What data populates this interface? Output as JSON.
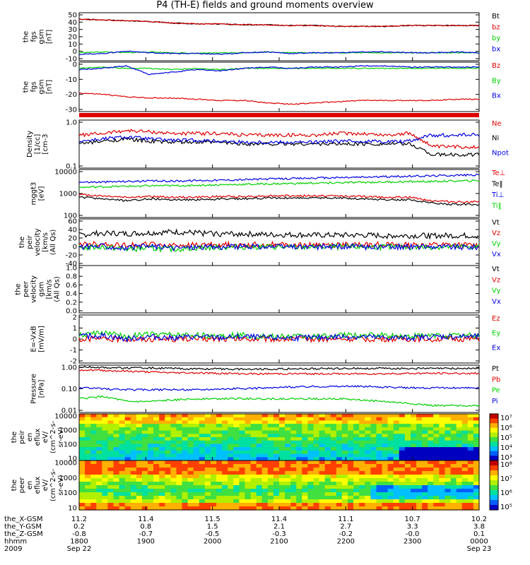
{
  "title": "P4 (TH-E) fields and ground moments overview",
  "colors": {
    "black": "#000000",
    "red": "#e00000",
    "green": "#00d000",
    "blue": "#0000e0"
  },
  "chart_data": [
    {
      "type": "line",
      "ylabel": [
        "the",
        "fgs",
        "gsm",
        "[nT]"
      ],
      "yticks": [
        "50",
        "40",
        "30",
        "20",
        "10",
        "0",
        "-10"
      ],
      "ylim": [
        -10,
        50
      ],
      "series": [
        {
          "name": "Bt",
          "color": "black",
          "values": [
            42,
            41,
            40,
            39,
            37,
            36,
            36,
            35,
            35,
            34,
            34,
            33,
            33,
            33,
            34,
            34,
            34,
            34
          ]
        },
        {
          "name": "bz",
          "color": "red",
          "values": [
            42,
            41,
            40,
            39,
            37,
            36,
            36,
            35,
            35,
            34,
            34,
            33,
            33,
            33,
            34,
            34,
            34,
            34
          ]
        },
        {
          "name": "by",
          "color": "green",
          "values": [
            0,
            1,
            0,
            1,
            0,
            -1,
            0,
            0,
            1,
            0,
            0,
            0,
            0,
            0,
            0,
            0,
            0,
            0
          ]
        },
        {
          "name": "bx",
          "color": "blue",
          "values": [
            -2,
            -1,
            2,
            0,
            -1,
            -1,
            -2,
            0,
            1,
            -1,
            0,
            0,
            1,
            1,
            0,
            0,
            1,
            0
          ]
        }
      ]
    },
    {
      "type": "line",
      "ylabel": [
        "the",
        "fgs",
        "gsm",
        "[nT]"
      ],
      "yticks": [
        "0",
        "-10",
        "-20",
        "-30"
      ],
      "ylim": [
        -35,
        5
      ],
      "series": [
        {
          "name": "Bz",
          "color": "red",
          "values": [
            -20,
            -21,
            -23,
            -24,
            -24,
            -25,
            -26,
            -26,
            -28,
            -29,
            -28,
            -27,
            -26,
            -26,
            -26,
            -26,
            -25,
            -25
          ]
        },
        {
          "name": "By",
          "color": "green",
          "values": [
            0,
            1,
            0,
            0,
            -1,
            0,
            -1,
            0,
            0,
            0,
            0,
            0,
            0,
            0,
            0,
            0,
            0,
            0
          ]
        },
        {
          "name": "Bx",
          "color": "blue",
          "values": [
            -1,
            0,
            2,
            -5,
            -3,
            -1,
            -2,
            0,
            1,
            0,
            1,
            1,
            2,
            2,
            1,
            1,
            1,
            1
          ]
        }
      ]
    },
    {
      "type": "line",
      "ylabel": [
        "Density",
        "[1/cc]",
        "[cm-3"
      ],
      "log": true,
      "yticks": [
        "1.0",
        "0.1"
      ],
      "ylim": [
        0.1,
        1.2
      ],
      "series": [
        {
          "name": "Ne",
          "color": "red",
          "values": [
            0.55,
            0.6,
            0.7,
            0.65,
            0.6,
            0.6,
            0.6,
            0.55,
            0.55,
            0.55,
            0.55,
            0.6,
            0.6,
            0.55,
            0.6,
            0.3,
            0.3,
            0.3
          ]
        },
        {
          "name": "Ni",
          "color": "black",
          "values": [
            0.35,
            0.4,
            0.45,
            0.4,
            0.38,
            0.38,
            0.38,
            0.35,
            0.35,
            0.35,
            0.35,
            0.35,
            0.35,
            0.35,
            0.35,
            0.2,
            0.2,
            0.2
          ]
        },
        {
          "name": "Npot",
          "color": "blue",
          "values": [
            0.4,
            0.45,
            0.5,
            0.45,
            0.42,
            0.42,
            0.4,
            0.38,
            0.38,
            0.38,
            0.38,
            0.4,
            0.4,
            0.4,
            0.4,
            0.55,
            0.55,
            0.55
          ]
        }
      ]
    },
    {
      "type": "line",
      "ylabel": [
        "mggt3",
        "[eV]"
      ],
      "log": true,
      "yticks": [
        "10000",
        "1000",
        "100"
      ],
      "ylim": [
        100,
        10000
      ],
      "series": [
        {
          "name": "Te⊥",
          "color": "red",
          "values": [
            900,
            800,
            700,
            750,
            700,
            700,
            750,
            750,
            800,
            800,
            800,
            800,
            750,
            700,
            700,
            500,
            450,
            450
          ]
        },
        {
          "name": "Te‖",
          "color": "black",
          "values": [
            700,
            600,
            500,
            600,
            550,
            550,
            600,
            600,
            650,
            650,
            650,
            650,
            600,
            550,
            550,
            400,
            350,
            350
          ]
        },
        {
          "name": "Ti⊥",
          "color": "blue",
          "values": [
            3000,
            3000,
            3200,
            3300,
            3300,
            3500,
            3600,
            3800,
            4000,
            4200,
            4400,
            4600,
            4800,
            5000,
            5200,
            5500,
            5800,
            6000
          ]
        },
        {
          "name": "Ti‖",
          "color": "green",
          "values": [
            1800,
            1900,
            2000,
            2100,
            2100,
            2200,
            2300,
            2400,
            2500,
            2600,
            2700,
            2800,
            2900,
            3000,
            3100,
            3200,
            3300,
            3400
          ]
        }
      ]
    },
    {
      "type": "line",
      "ylabel": [
        "the",
        "peir",
        "velocity",
        "[km/s",
        "(All Qs)"
      ],
      "yticks": [
        "60",
        "40",
        "20",
        "0",
        "-20",
        "-40"
      ],
      "ylim": [
        -40,
        60
      ],
      "series": [
        {
          "name": "Vt",
          "color": "black",
          "values": [
            25,
            30,
            28,
            30,
            32,
            30,
            28,
            28,
            26,
            26,
            25,
            25,
            25,
            24,
            24,
            24,
            24,
            24
          ]
        },
        {
          "name": "Vz",
          "color": "red",
          "values": [
            5,
            6,
            4,
            5,
            3,
            4,
            5,
            4,
            5,
            5,
            4,
            4,
            5,
            5,
            4,
            5,
            4,
            4
          ]
        },
        {
          "name": "Vy",
          "color": "green",
          "values": [
            -2,
            0,
            -5,
            -3,
            -5,
            -2,
            -1,
            0,
            0,
            -1,
            0,
            0,
            0,
            0,
            -1,
            0,
            0,
            0
          ]
        },
        {
          "name": "Vx",
          "color": "blue",
          "values": [
            0,
            2,
            -3,
            2,
            -2,
            0,
            0,
            1,
            0,
            0,
            0,
            1,
            0,
            0,
            0,
            1,
            0,
            0
          ]
        }
      ]
    },
    {
      "type": "line",
      "ylabel": [
        "the",
        "peer",
        "velocity",
        "gsm",
        "[km/s",
        "(All Qs)"
      ],
      "yticks": [
        "1.0",
        "0.8",
        "0.6",
        "0.4",
        "0.2",
        "0.0"
      ],
      "ylim": [
        0,
        1
      ],
      "series": [
        {
          "name": "Vt",
          "color": "black",
          "values": []
        },
        {
          "name": "Vz",
          "color": "red",
          "values": []
        },
        {
          "name": "Vy",
          "color": "green",
          "values": []
        },
        {
          "name": "Vx",
          "color": "blue",
          "values": []
        }
      ]
    },
    {
      "type": "line",
      "ylabel": [
        "E=-VxB",
        "[mV/m]"
      ],
      "yticks": [
        "2",
        "1",
        "0",
        "-1",
        "-2"
      ],
      "ylim": [
        -2,
        2
      ],
      "series": [
        {
          "name": "Ez",
          "color": "red",
          "values": [
            0,
            0,
            0,
            0,
            0,
            0,
            0,
            0,
            0,
            0,
            0,
            0,
            0,
            0,
            0,
            0,
            0,
            0
          ]
        },
        {
          "name": "Ey",
          "color": "green",
          "values": [
            0.3,
            0.5,
            0.2,
            0.4,
            0.3,
            0.3,
            0.3,
            0.3,
            0.2,
            0.2,
            0.2,
            0.3,
            0.3,
            0.3,
            0.2,
            0.3,
            0.3,
            0.3
          ]
        },
        {
          "name": "Ex",
          "color": "blue",
          "values": [
            0.2,
            0.3,
            0.0,
            0.2,
            0.1,
            0.2,
            0.1,
            0.2,
            0.1,
            0.1,
            0.1,
            0.2,
            0.2,
            0.1,
            0.1,
            0.2,
            0.2,
            0.2
          ]
        }
      ]
    },
    {
      "type": "line",
      "ylabel": [
        "Pressure",
        "[nPa]"
      ],
      "log": true,
      "yticks": [
        "1.00",
        "0.10",
        "0.01"
      ],
      "ylim": [
        0.01,
        1.2
      ],
      "series": [
        {
          "name": "Pt",
          "color": "black",
          "values": [
            1.0,
            0.95,
            0.9,
            0.9,
            0.85,
            0.82,
            0.82,
            0.8,
            0.8,
            0.82,
            0.84,
            0.85,
            0.86,
            0.86,
            0.86,
            0.86,
            0.86,
            0.87
          ]
        },
        {
          "name": "Pb",
          "color": "red",
          "values": [
            0.75,
            0.7,
            0.65,
            0.6,
            0.55,
            0.55,
            0.52,
            0.5,
            0.5,
            0.5,
            0.5,
            0.5,
            0.5,
            0.5,
            0.52,
            0.52,
            0.52,
            0.53
          ]
        },
        {
          "name": "Pe",
          "color": "green",
          "values": [
            0.04,
            0.05,
            0.03,
            0.03,
            0.035,
            0.04,
            0.04,
            0.04,
            0.04,
            0.04,
            0.04,
            0.04,
            0.035,
            0.03,
            0.025,
            0.02,
            0.02,
            0.02
          ]
        },
        {
          "name": "Pi",
          "color": "blue",
          "values": [
            0.12,
            0.11,
            0.1,
            0.1,
            0.1,
            0.1,
            0.11,
            0.11,
            0.12,
            0.13,
            0.14,
            0.14,
            0.14,
            0.13,
            0.12,
            0.12,
            0.12,
            0.12
          ]
        }
      ]
    },
    {
      "type": "heatmap",
      "ylabel": [
        "the",
        "peir",
        "en",
        "eflux",
        "eV/",
        "(cm^2-s-",
        "sr-eV)"
      ],
      "log": true,
      "yticks": [
        "10000",
        "1000",
        "100",
        "10"
      ],
      "colorbar_ticks": [
        "10⁷",
        "10⁶",
        "10⁵",
        "10⁴",
        "10³"
      ]
    },
    {
      "type": "heatmap",
      "ylabel": [
        "the",
        "peer",
        "en",
        "eflux",
        "eV/",
        "(cm^2-s-",
        "sr-eV)"
      ],
      "log": true,
      "yticks": [
        "10000",
        "1000",
        "100",
        "10"
      ],
      "colorbar_ticks": [
        "10⁸",
        "10⁷",
        "10⁶",
        "10⁵"
      ]
    }
  ],
  "x_axis": {
    "row_labels": [
      "the_X-GSM",
      "the_Y-GSM",
      "the_Z-GSM",
      "hhmm",
      "2009"
    ],
    "columns": [
      {
        "values": [
          "11.2",
          "0.2",
          "-0.8",
          "1800",
          "Sep 22"
        ]
      },
      {
        "values": [
          "11.4",
          "0.8",
          "-0.7",
          "1900",
          ""
        ]
      },
      {
        "values": [
          "11.5",
          "1.5",
          "-0.5",
          "2000",
          ""
        ]
      },
      {
        "values": [
          "11.4",
          "2.1",
          "-0.3",
          "2100",
          ""
        ]
      },
      {
        "values": [
          "11.1",
          "2.7",
          "-0.2",
          "2200",
          ""
        ]
      },
      {
        "values": [
          "10.7",
          "3.3",
          "-0.0",
          "2300",
          ""
        ]
      },
      {
        "values": [
          "10.2",
          "3.8",
          "0.1",
          "0000",
          "Sep 23"
        ]
      }
    ]
  }
}
